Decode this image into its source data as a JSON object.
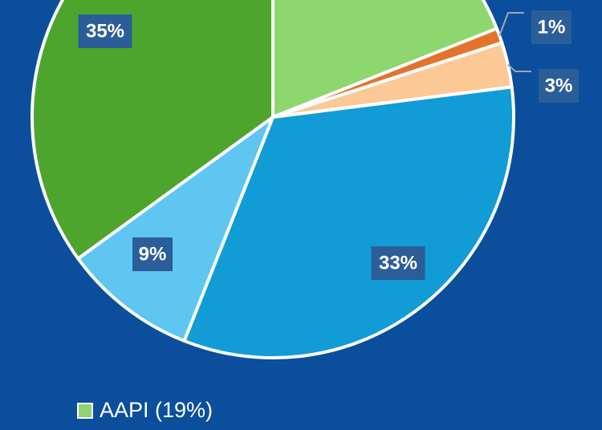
{
  "chart_data": {
    "type": "pie",
    "slices": [
      {
        "label": "",
        "value": 19,
        "display": "",
        "color": "#8ed66e"
      },
      {
        "label": "",
        "value": 1,
        "display": "1%",
        "color": "#e3732c"
      },
      {
        "label": "",
        "value": 3,
        "display": "3%",
        "color": "#fcc996"
      },
      {
        "label": "",
        "value": 33,
        "display": "33%",
        "color": "#119cd6"
      },
      {
        "label": "",
        "value": 9,
        "display": "9%",
        "color": "#5ec6f1"
      },
      {
        "label": "",
        "value": 35,
        "display": "35%",
        "color": "#4ea52e"
      }
    ],
    "legend": [
      {
        "label": "AAPI (19%)",
        "color": "#8fd46f"
      }
    ],
    "label_box_color": "#2b5e98",
    "background": "#0b4f9c"
  }
}
